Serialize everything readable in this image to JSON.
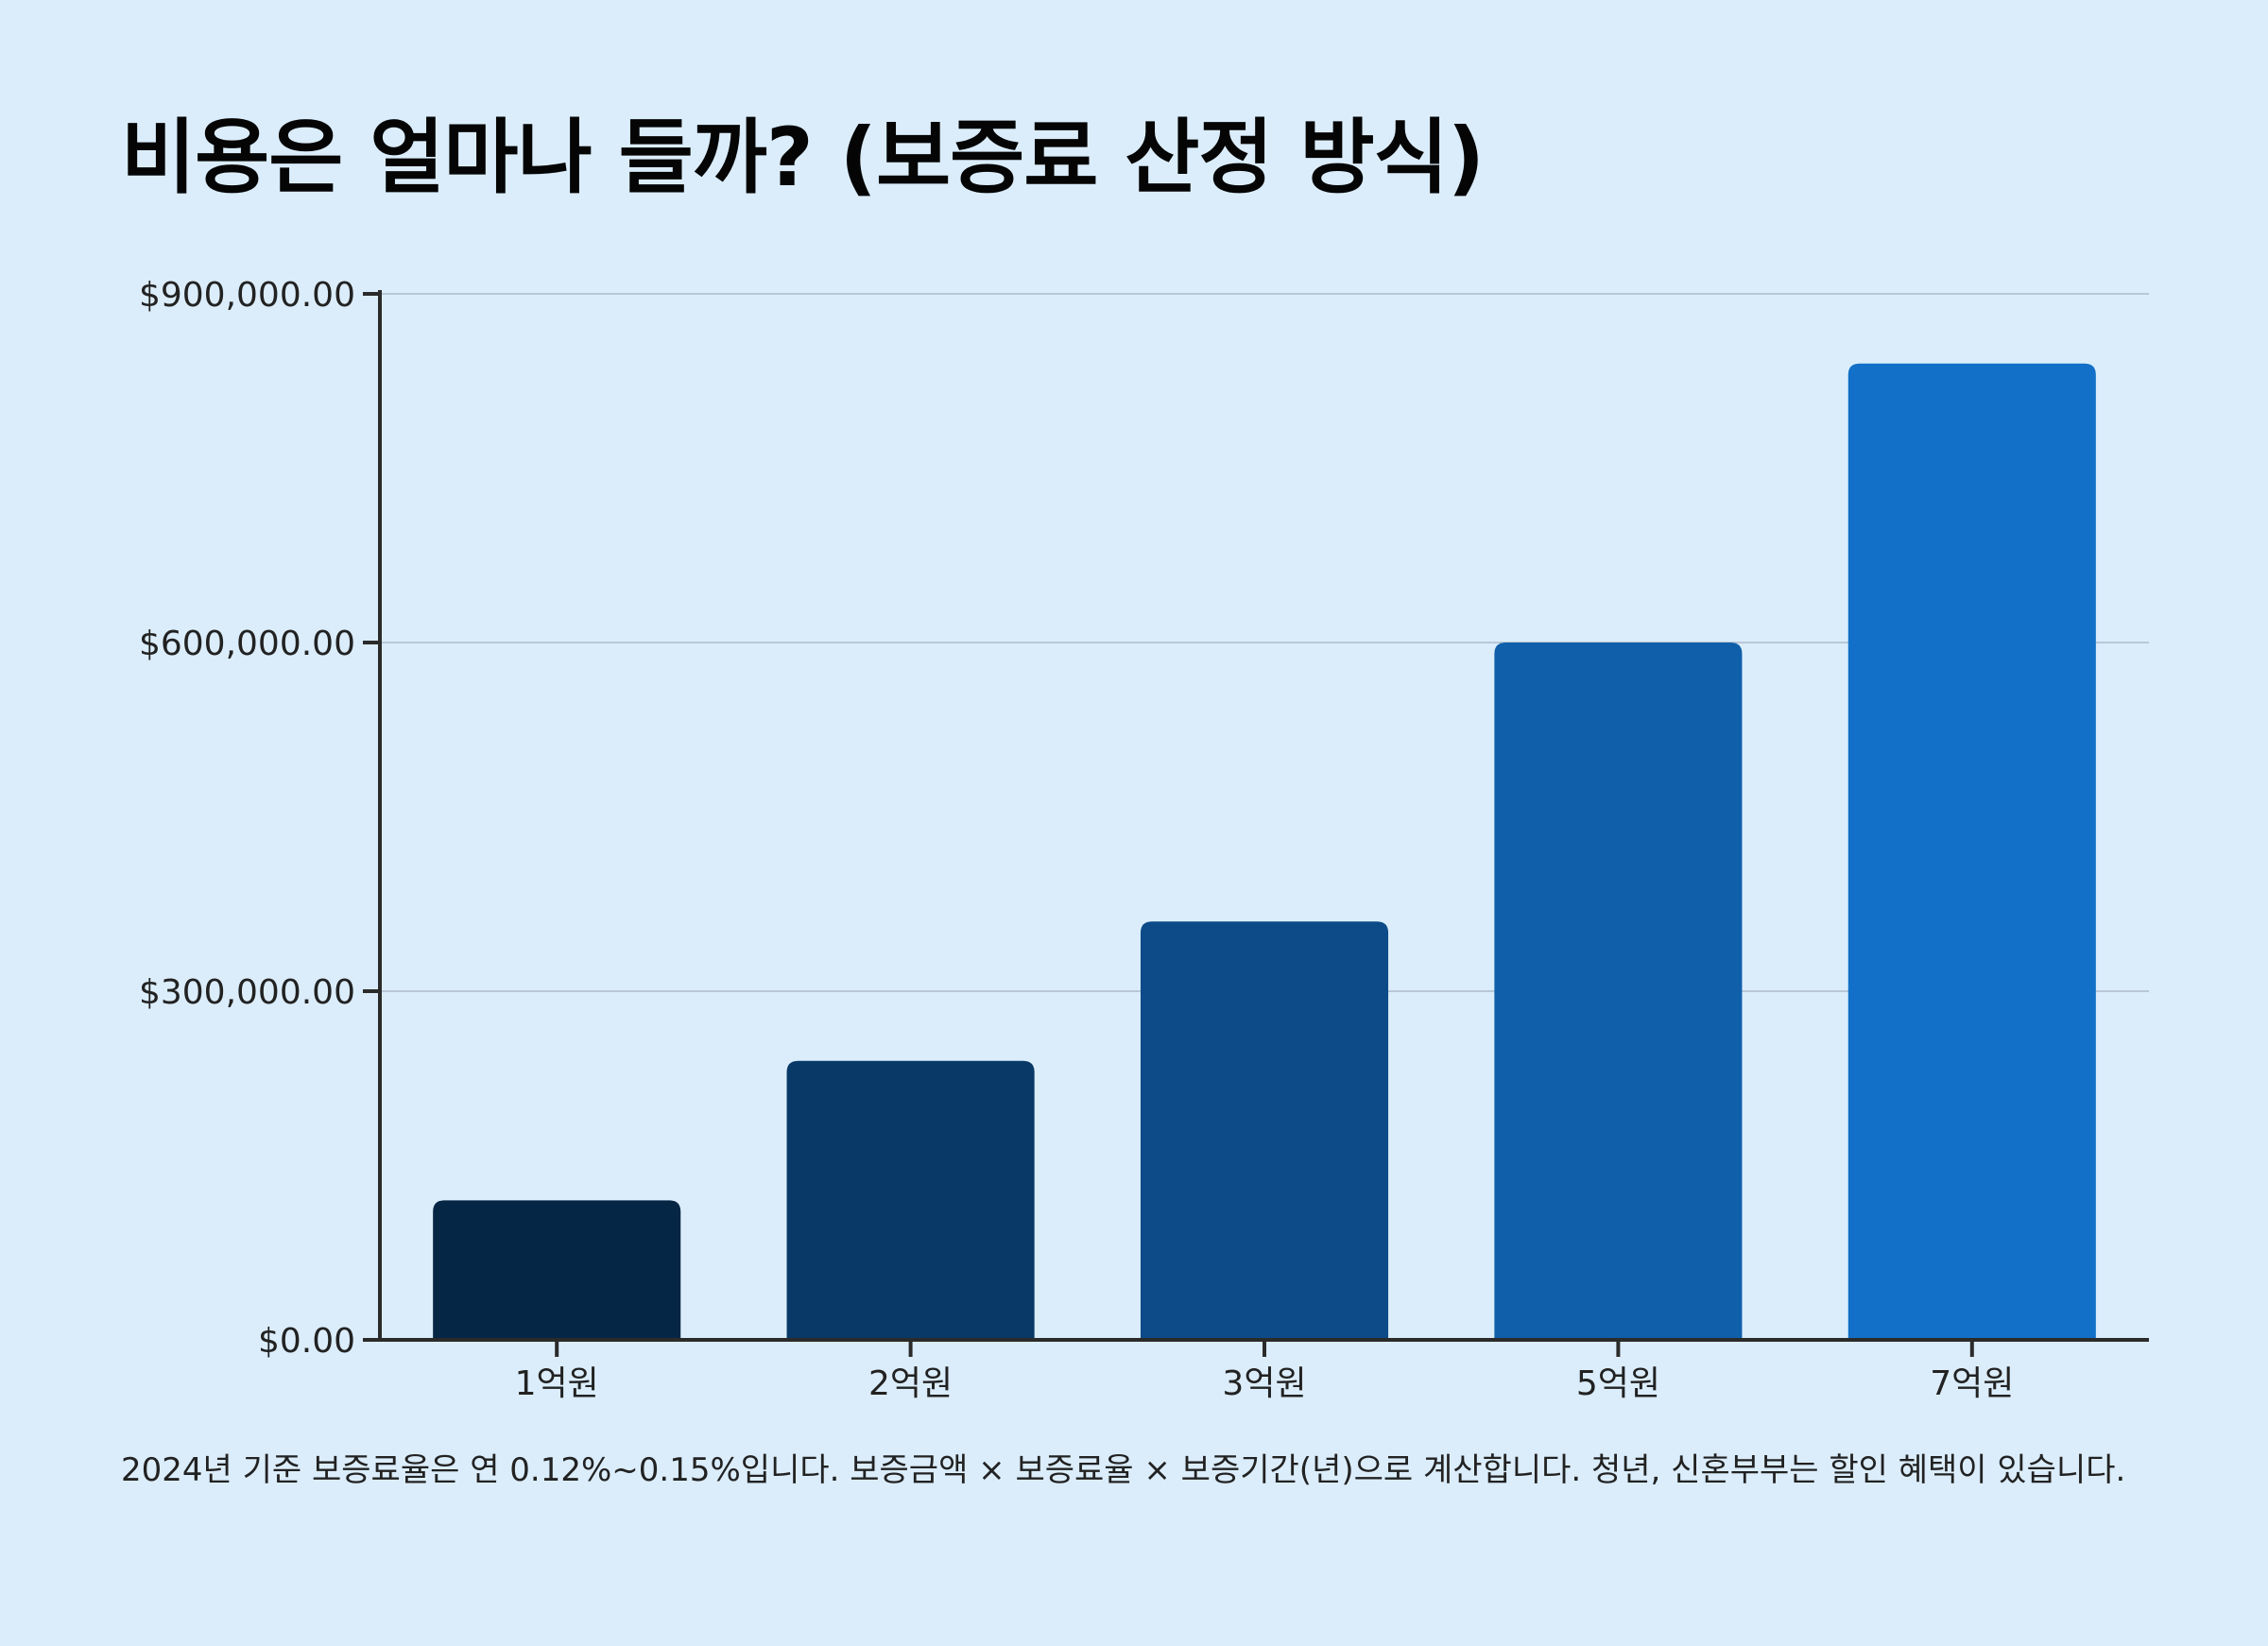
{
  "title": "비용은 얼마나 들까? (보증료 산정 방식)",
  "footnote": "2024년 기준 보증료율은 연 0.12%~0.15%입니다. 보증금액 × 보증료율 × 보증기간(년)으로 계산합니다. 청년, 신혼부부는 할인 혜택이 있습니다.",
  "chart_data": {
    "type": "bar",
    "title": "비용은 얼마나 들까? (보증료 산정 방식)",
    "categories": [
      "1억원",
      "2억원",
      "3억원",
      "5억원",
      "7억원"
    ],
    "values": [
      120000,
      240000,
      360000,
      600000,
      840000
    ],
    "colors": [
      "#062646",
      "#093967",
      "#0d4b88",
      "#0f5faa",
      "#1270c8"
    ],
    "xlabel": "",
    "ylabel": "",
    "ylim": [
      0,
      900000
    ],
    "yticks": [
      0,
      300000,
      600000,
      900000
    ],
    "ytick_labels": [
      "$0.00",
      "$300,000.00",
      "$600,000.00",
      "$900,000.00"
    ],
    "grid": true,
    "legend": "none"
  }
}
